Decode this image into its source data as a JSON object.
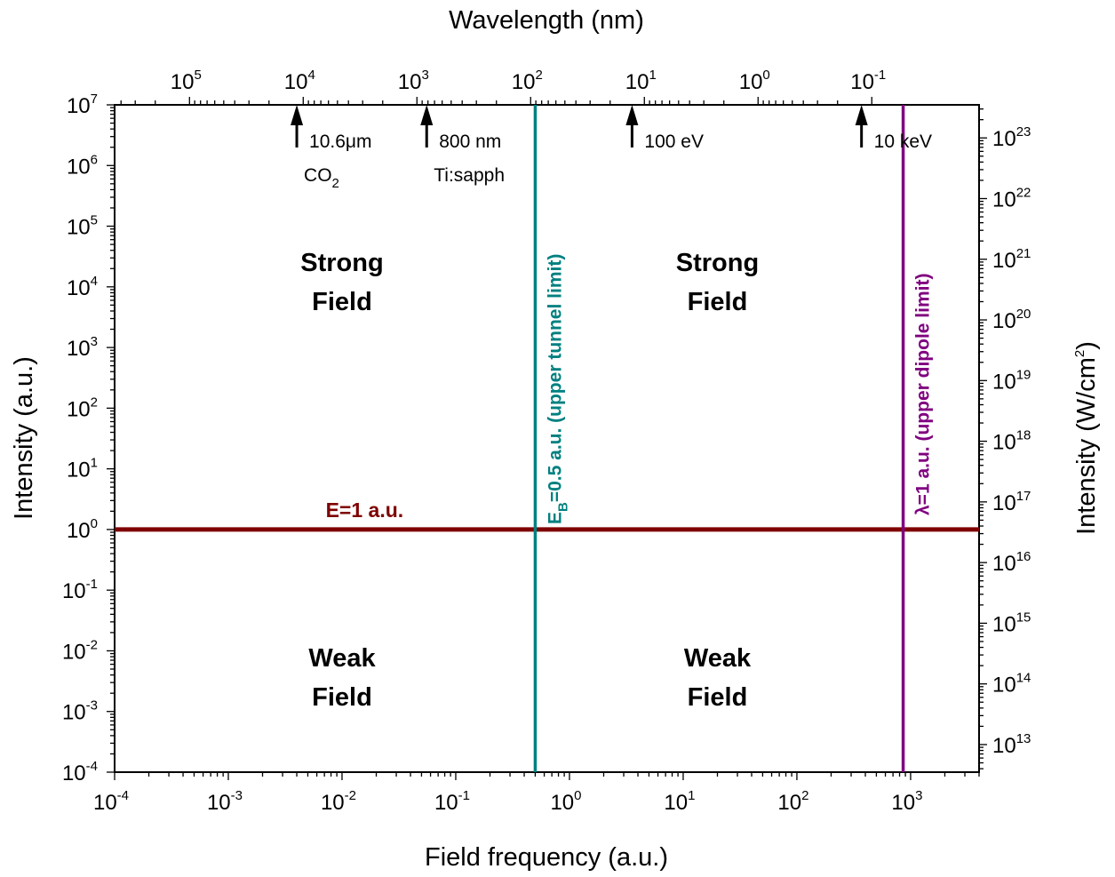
{
  "chart_data": {
    "type": "line",
    "xlabel": "Field frequency (a.u.)",
    "ylabel": "Intensity (a.u.)",
    "x2label": "Wavelength (nm)",
    "y2label_main": "Intensity (W/cm",
    "y2label_sup": "2",
    "y2label_end": ")",
    "xscale": "log",
    "yscale": "log",
    "xlim": [
      0.0001,
      4000
    ],
    "ylim": [
      0.0001,
      10000000
    ],
    "x_ticks": [
      {
        "value": 0.0001,
        "base": "10",
        "exp": "-4"
      },
      {
        "value": 0.001,
        "base": "10",
        "exp": "-3"
      },
      {
        "value": 0.01,
        "base": "10",
        "exp": "-2"
      },
      {
        "value": 0.1,
        "base": "10",
        "exp": "-1"
      },
      {
        "value": 1,
        "base": "10",
        "exp": "0"
      },
      {
        "value": 10,
        "base": "10",
        "exp": "1"
      },
      {
        "value": 100,
        "base": "10",
        "exp": "2"
      },
      {
        "value": 1000,
        "base": "10",
        "exp": "3"
      }
    ],
    "y_ticks": [
      {
        "value": 0.0001,
        "base": "10",
        "exp": "-4"
      },
      {
        "value": 0.001,
        "base": "10",
        "exp": "-3"
      },
      {
        "value": 0.01,
        "base": "10",
        "exp": "-2"
      },
      {
        "value": 0.1,
        "base": "10",
        "exp": "-1"
      },
      {
        "value": 1,
        "base": "10",
        "exp": "0"
      },
      {
        "value": 10,
        "base": "10",
        "exp": "1"
      },
      {
        "value": 100,
        "base": "10",
        "exp": "2"
      },
      {
        "value": 1000,
        "base": "10",
        "exp": "3"
      },
      {
        "value": 10000,
        "base": "10",
        "exp": "4"
      },
      {
        "value": 100000,
        "base": "10",
        "exp": "5"
      },
      {
        "value": 1000000,
        "base": "10",
        "exp": "6"
      },
      {
        "value": 10000000,
        "base": "10",
        "exp": "7"
      }
    ],
    "top_ticks": [
      {
        "wavelength_nm": 100000,
        "base": "10",
        "exp": "5"
      },
      {
        "wavelength_nm": 10000,
        "base": "10",
        "exp": "4"
      },
      {
        "wavelength_nm": 1000,
        "base": "10",
        "exp": "3"
      },
      {
        "wavelength_nm": 100,
        "base": "10",
        "exp": "2"
      },
      {
        "wavelength_nm": 10,
        "base": "10",
        "exp": "1"
      },
      {
        "wavelength_nm": 1,
        "base": "10",
        "exp": "0"
      },
      {
        "wavelength_nm": 0.1,
        "base": "10",
        "exp": "-1"
      }
    ],
    "right_ticks": [
      {
        "intensity_wcm2": 10000000000000.0,
        "base": "10",
        "exp": "13"
      },
      {
        "intensity_wcm2": 100000000000000.0,
        "base": "10",
        "exp": "14"
      },
      {
        "intensity_wcm2": 1000000000000000.0,
        "base": "10",
        "exp": "15"
      },
      {
        "intensity_wcm2": 1e+16,
        "base": "10",
        "exp": "16"
      },
      {
        "intensity_wcm2": 1e+17,
        "base": "10",
        "exp": "17"
      },
      {
        "intensity_wcm2": 1e+18,
        "base": "10",
        "exp": "18"
      },
      {
        "intensity_wcm2": 1e+19,
        "base": "10",
        "exp": "19"
      },
      {
        "intensity_wcm2": 1e+20,
        "base": "10",
        "exp": "20"
      },
      {
        "intensity_wcm2": 1e+21,
        "base": "10",
        "exp": "21"
      },
      {
        "intensity_wcm2": 1e+22,
        "base": "10",
        "exp": "22"
      },
      {
        "intensity_wcm2": 1e+23,
        "base": "10",
        "exp": "23"
      }
    ],
    "lines": [
      {
        "orientation": "horizontal",
        "y": 1,
        "color": "#7f0000",
        "label": "E=1 a.u.",
        "label_x": 0.006
      },
      {
        "orientation": "vertical",
        "x": 0.5,
        "color": "#008080",
        "label_main": "E",
        "label_sub": "B",
        "label_rest": "=0.5 a.u. (upper tunnel limit)"
      },
      {
        "orientation": "vertical",
        "x": 860,
        "color": "#800080",
        "label_main": "λ=1 a.u. (upper dipole limit)"
      }
    ],
    "arrows": [
      {
        "x": 0.004,
        "label": "10.6μm",
        "sublabel_main": "CO",
        "sublabel_sub": "2"
      },
      {
        "x": 0.0555,
        "label": "800 nm",
        "sublabel_main": "Ti:sapph",
        "sublabel_sub": ""
      },
      {
        "x": 3.55,
        "label": "100 eV"
      },
      {
        "x": 370,
        "label": "10 keV"
      }
    ],
    "regions": [
      {
        "line1": "Strong",
        "line2": "Field",
        "x": 0.01,
        "y": 10000
      },
      {
        "line1": "Strong",
        "line2": "Field",
        "x": 20,
        "y": 10000
      },
      {
        "line1": "Weak",
        "line2": "Field",
        "x": 0.01,
        "y": 0.003
      },
      {
        "line1": "Weak",
        "line2": "Field",
        "x": 20,
        "y": 0.003
      }
    ],
    "grid": false,
    "legend": "none"
  }
}
